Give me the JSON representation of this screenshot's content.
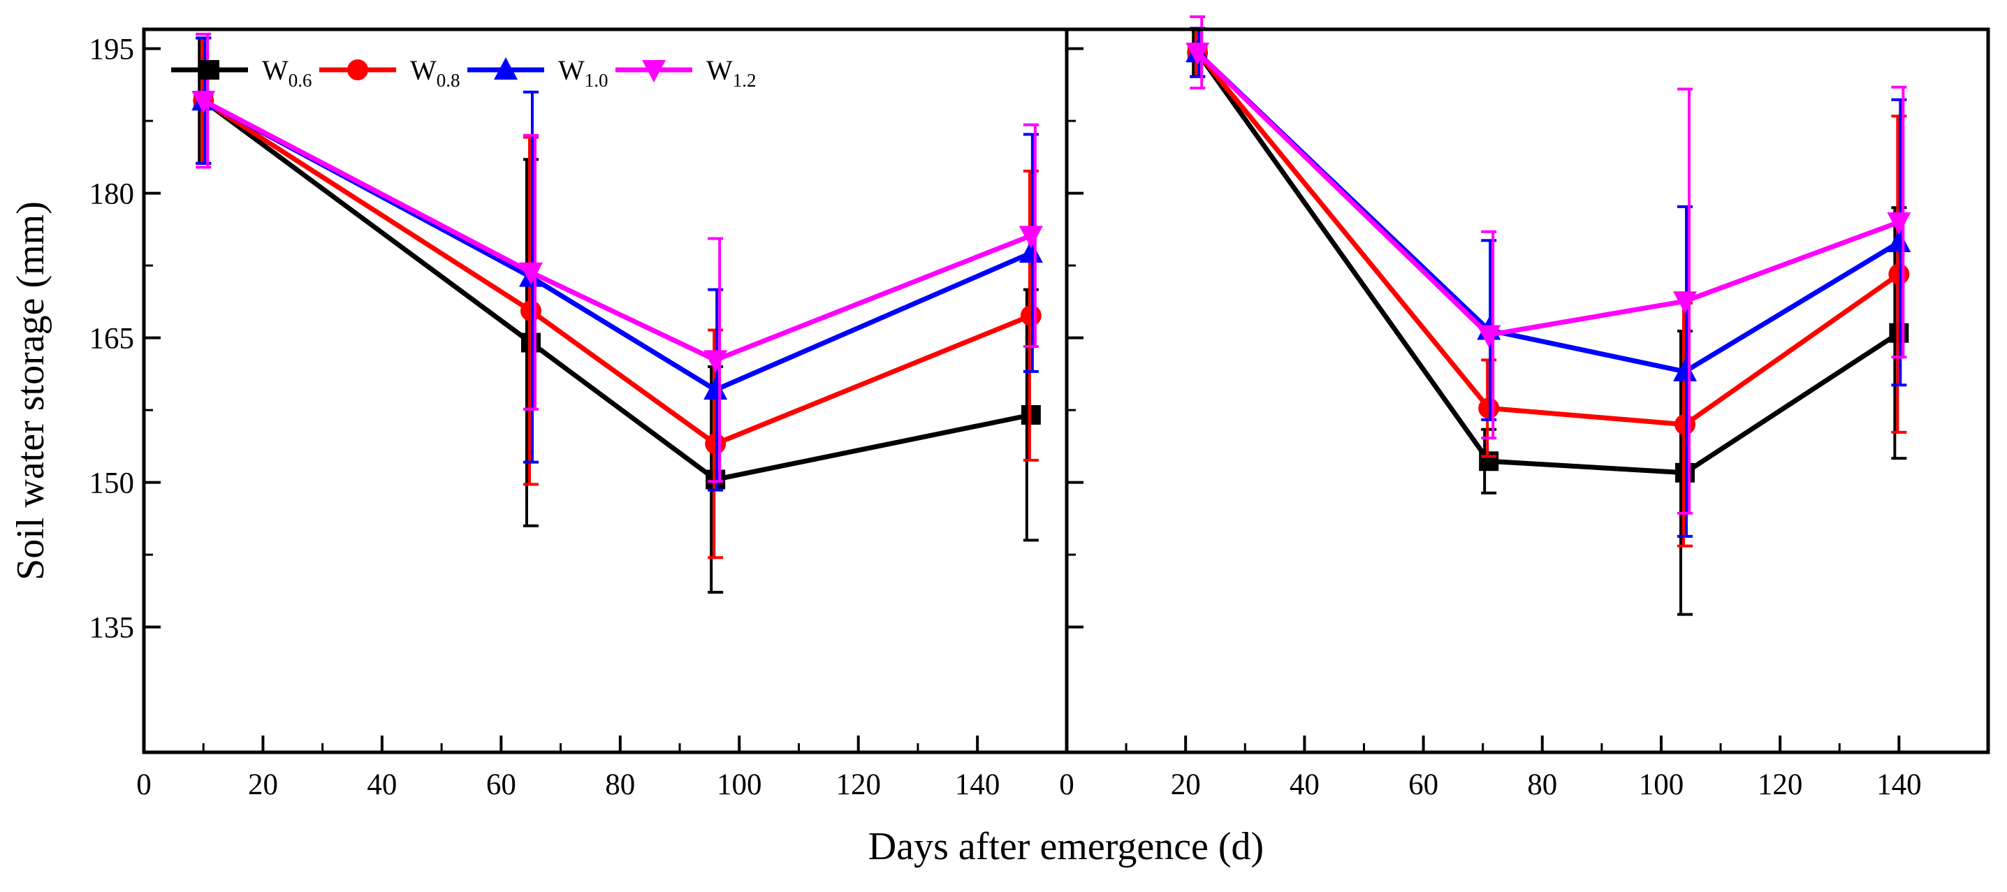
{
  "chart_data": {
    "type": "line",
    "xlabel": "Days after emergence (d)",
    "ylabel": "Soil water storage (mm)",
    "ylim": [
      122,
      197
    ],
    "yticks": [
      135,
      150,
      165,
      180,
      195
    ],
    "legend": {
      "placement": "top-left",
      "entries": [
        {
          "base": "W",
          "sub": "0.6",
          "color": "#000000",
          "marker": "square"
        },
        {
          "base": "W",
          "sub": "0.8",
          "color": "#ff0000",
          "marker": "circle"
        },
        {
          "base": "W",
          "sub": "1.0",
          "color": "#0000ff",
          "marker": "triangle-up"
        },
        {
          "base": "W",
          "sub": "1.2",
          "color": "#ff00ff",
          "marker": "triangle-down"
        }
      ]
    },
    "panels": [
      {
        "name": "left",
        "xlim": [
          0,
          155
        ],
        "xticks": [
          0,
          20,
          40,
          60,
          80,
          100,
          120,
          140
        ],
        "x": [
          10,
          65,
          96,
          149
        ],
        "series": [
          {
            "name": "W0.6",
            "color": "#000000",
            "marker": "square",
            "values": [
              189.6,
              164.5,
              150.3,
              157.0
            ],
            "errors": [
              6.5,
              19.0,
              11.7,
              13.0
            ]
          },
          {
            "name": "W0.8",
            "color": "#ff0000",
            "marker": "circle",
            "values": [
              189.6,
              167.8,
              154.0,
              167.3
            ],
            "errors": [
              6.5,
              18.0,
              11.8,
              15.0
            ]
          },
          {
            "name": "W1.0",
            "color": "#0000ff",
            "marker": "triangle-up",
            "values": [
              189.6,
              171.3,
              159.6,
              173.8
            ],
            "errors": [
              6.5,
              19.2,
              10.4,
              12.3
            ]
          },
          {
            "name": "W1.2",
            "color": "#ff00ff",
            "marker": "triangle-down",
            "values": [
              189.6,
              171.8,
              162.7,
              175.6
            ],
            "errors": [
              6.9,
              14.2,
              12.6,
              11.5
            ]
          }
        ]
      },
      {
        "name": "right",
        "xlim": [
          0,
          155
        ],
        "xticks": [
          0,
          20,
          40,
          60,
          80,
          100,
          120,
          140
        ],
        "x": [
          22,
          71,
          104,
          140
        ],
        "series": [
          {
            "name": "W0.6",
            "color": "#000000",
            "marker": "square",
            "values": [
              194.6,
              152.2,
              151.0,
              165.5
            ],
            "errors": [
              2.5,
              3.3,
              14.7,
              13.0
            ]
          },
          {
            "name": "W0.8",
            "color": "#ff0000",
            "marker": "circle",
            "values": [
              194.6,
              157.7,
              156.0,
              171.6
            ],
            "errors": [
              2.5,
              5.0,
              12.6,
              16.4
            ]
          },
          {
            "name": "W1.0",
            "color": "#0000ff",
            "marker": "triangle-up",
            "values": [
              194.6,
              165.8,
              161.5,
              174.9
            ],
            "errors": [
              2.5,
              9.3,
              17.1,
              14.8
            ]
          },
          {
            "name": "W1.2",
            "color": "#ff00ff",
            "marker": "triangle-down",
            "values": [
              194.6,
              165.3,
              168.8,
              177.0
            ],
            "errors": [
              3.7,
              10.7,
              22.0,
              14.0
            ]
          }
        ]
      }
    ]
  }
}
